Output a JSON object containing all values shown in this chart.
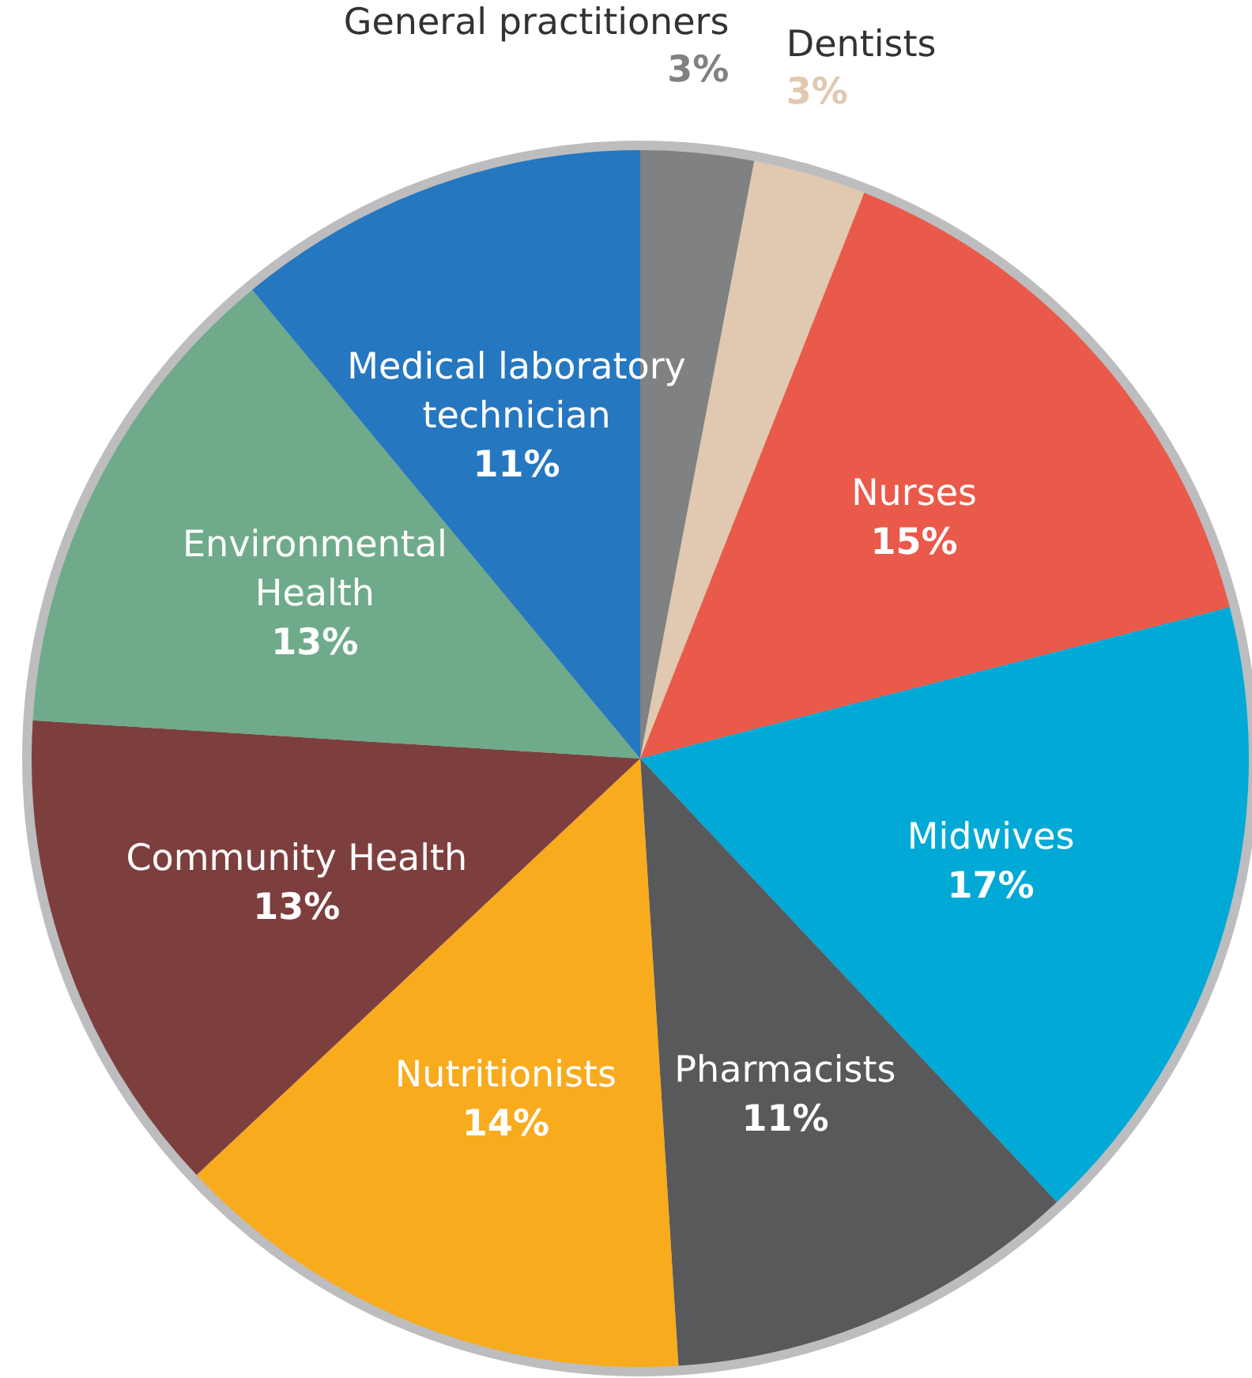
{
  "chart_data": {
    "type": "pie",
    "categories": [
      "General practitioners",
      "Dentists",
      "Nurses",
      "Midwives",
      "Pharmacists",
      "Nutritionists",
      "Community Health",
      "Environmental Health",
      "Medical laboratory technician"
    ],
    "values": [
      3,
      3,
      15,
      17,
      11,
      14,
      13,
      13,
      11
    ],
    "value_labels": [
      "3%",
      "3%",
      "15%",
      "17%",
      "11%",
      "14%",
      "13%",
      "13%",
      "11%"
    ],
    "colors": [
      "#7f8182",
      "#e0c9b0",
      "#e95a4a",
      "#00a9d6",
      "#58595b",
      "#f8ab1d",
      "#7d3f3e",
      "#6fab8a",
      "#2577c0"
    ],
    "legend": false
  }
}
